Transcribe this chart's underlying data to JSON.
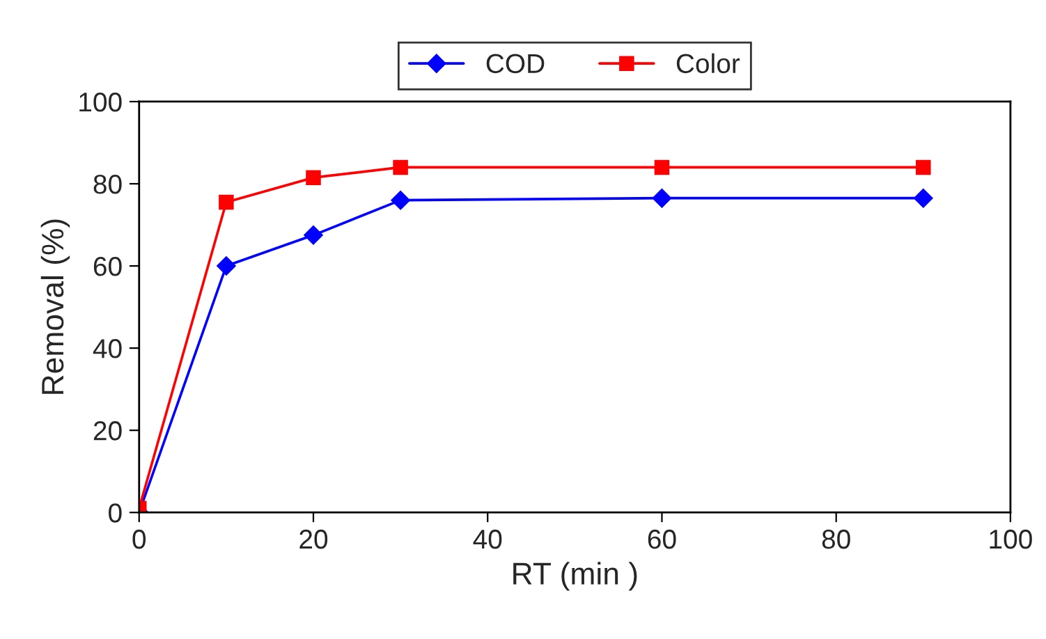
{
  "chart_data": {
    "type": "line",
    "xlabel": "RT (min )",
    "ylabel": "Removal (%)",
    "x": [
      0,
      10,
      20,
      30,
      60,
      90
    ],
    "series": [
      {
        "name": "COD",
        "color": "#0000ff",
        "marker": "diamond",
        "values": [
          0,
          60,
          67.5,
          76,
          76.5,
          76.5
        ]
      },
      {
        "name": "Color",
        "color": "#ff0000",
        "marker": "square",
        "values": [
          1,
          75.5,
          81.5,
          84,
          84,
          84
        ]
      }
    ],
    "xlim": [
      0,
      100
    ],
    "xticks": [
      0,
      20,
      40,
      60,
      80,
      100
    ],
    "ylim": [
      0,
      100
    ],
    "yticks": [
      0,
      20,
      40,
      60,
      80,
      100
    ],
    "grid": false,
    "legend": "top",
    "line_style": "solid"
  }
}
